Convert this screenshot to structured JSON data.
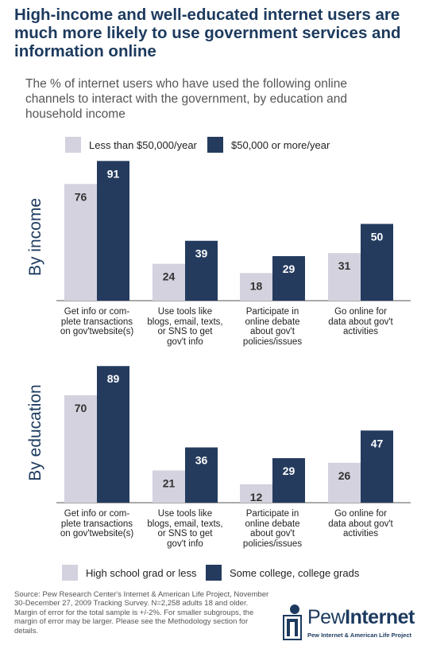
{
  "title": "High-income and well-educated internet users are much more likely to use government services and information online",
  "subtitle": "The % of internet users who have used the following online channels to interact with the government, by education and household income",
  "colors": {
    "light": "#d3d2de",
    "dark": "#243b5e",
    "title": "#1c3a5e"
  },
  "source": "Source: Pew Research Center's Internet & American Life Project, November 30-December 27, 2009 Tracking Survey. N=2,258 adults 18 and older. Margin of error for the total sample is +/-2%. For smaller subgroups, the margin of error may be larger. Please see the Methodology section for details.",
  "logo": {
    "word1": "Pew",
    "word2": "Internet",
    "tagline": "Pew Internet & American Life Project"
  },
  "chart_data": [
    {
      "type": "bar",
      "panel_label": "By income",
      "categories": [
        "Get info or com-plete transactions on gov'twebsite(s)",
        "Use tools like blogs, email, texts, or SNS to get gov't info",
        "Participate in online debate about gov't policies/issues",
        "Go online for data about gov't activities"
      ],
      "category_lines": [
        [
          "Get info or com-",
          "plete transactions",
          "on gov'twebsite(s)"
        ],
        [
          "Use tools like",
          "blogs, email, texts,",
          "or SNS to get",
          "gov't info"
        ],
        [
          "Participate in",
          "online debate",
          "about gov't",
          "policies/issues"
        ],
        [
          "Go online for",
          "data about gov't",
          "activities"
        ]
      ],
      "series": [
        {
          "name": "Less than $50,000/year",
          "values": [
            76,
            24,
            18,
            31
          ]
        },
        {
          "name": "$50,000 or more/year",
          "values": [
            91,
            39,
            29,
            50
          ]
        }
      ],
      "legend_position": "top",
      "ylim": [
        0,
        100
      ],
      "grid": false
    },
    {
      "type": "bar",
      "panel_label": "By  education",
      "categories": [
        "Get info or com-plete transactions on gov'twebsite(s)",
        "Use tools like blogs, email, texts, or SNS to get gov't info",
        "Participate in online debate about gov't policies/issues",
        "Go online for data about gov't activities"
      ],
      "category_lines": [
        [
          "Get info or com-",
          "plete transactions",
          "on gov'twebsite(s)"
        ],
        [
          "Use tools like",
          "blogs, email, texts,",
          "or SNS to get",
          "gov't info"
        ],
        [
          "Participate in",
          "online debate",
          "about gov't",
          "policies/issues"
        ],
        [
          "Go online for",
          "data about gov't",
          "activities"
        ]
      ],
      "series": [
        {
          "name": "High school grad or less",
          "values": [
            70,
            21,
            12,
            26
          ]
        },
        {
          "name": "Some college, college grads",
          "values": [
            89,
            36,
            29,
            47
          ]
        }
      ],
      "legend_position": "bottom",
      "ylim": [
        0,
        100
      ],
      "grid": false
    }
  ]
}
